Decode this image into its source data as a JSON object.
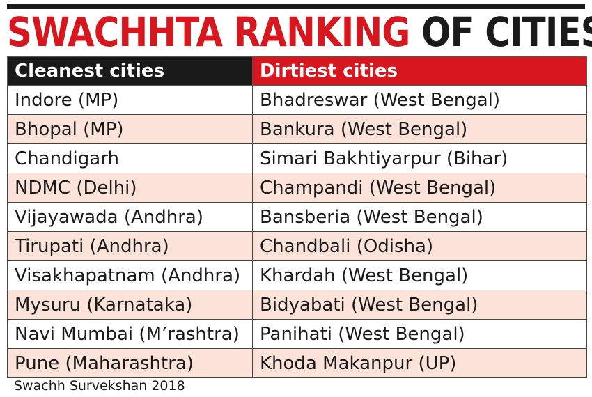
{
  "title": {
    "part_red": "SWACHHTA RANKING",
    "part_black": "OF CITIES"
  },
  "colors": {
    "accent_red": "#d7161e",
    "header_black": "#1a1a1a",
    "stripe_pink": "#fbe3da"
  },
  "table": {
    "headers": {
      "clean": "Cleanest cities",
      "dirty": "Dirtiest cities"
    },
    "rows": [
      {
        "clean": "Indore (MP)",
        "dirty": "Bhadreswar (West Bengal)"
      },
      {
        "clean": "Bhopal (MP)",
        "dirty": "Bankura (West Bengal)"
      },
      {
        "clean": "Chandigarh",
        "dirty": "Simari Bakhtiyarpur (Bihar)"
      },
      {
        "clean": "NDMC (Delhi)",
        "dirty": "Champandi (West Bengal)"
      },
      {
        "clean": "Vijayawada (Andhra)",
        "dirty": "Bansberia (West Bengal)"
      },
      {
        "clean": "Tirupati (Andhra)",
        "dirty": "Chandbali (Odisha)"
      },
      {
        "clean": "Visakhapatnam (Andhra)",
        "dirty": "Khardah (West Bengal)"
      },
      {
        "clean": "Mysuru (Karnataka)",
        "dirty": "Bidyabati (West Bengal)"
      },
      {
        "clean": "Navi Mumbai (M’rashtra)",
        "dirty": "Panihati (West Bengal)"
      },
      {
        "clean": "Pune (Maharashtra)",
        "dirty": "Khoda Makanpur (UP)"
      }
    ]
  },
  "source": "Swachh Survekshan 2018"
}
